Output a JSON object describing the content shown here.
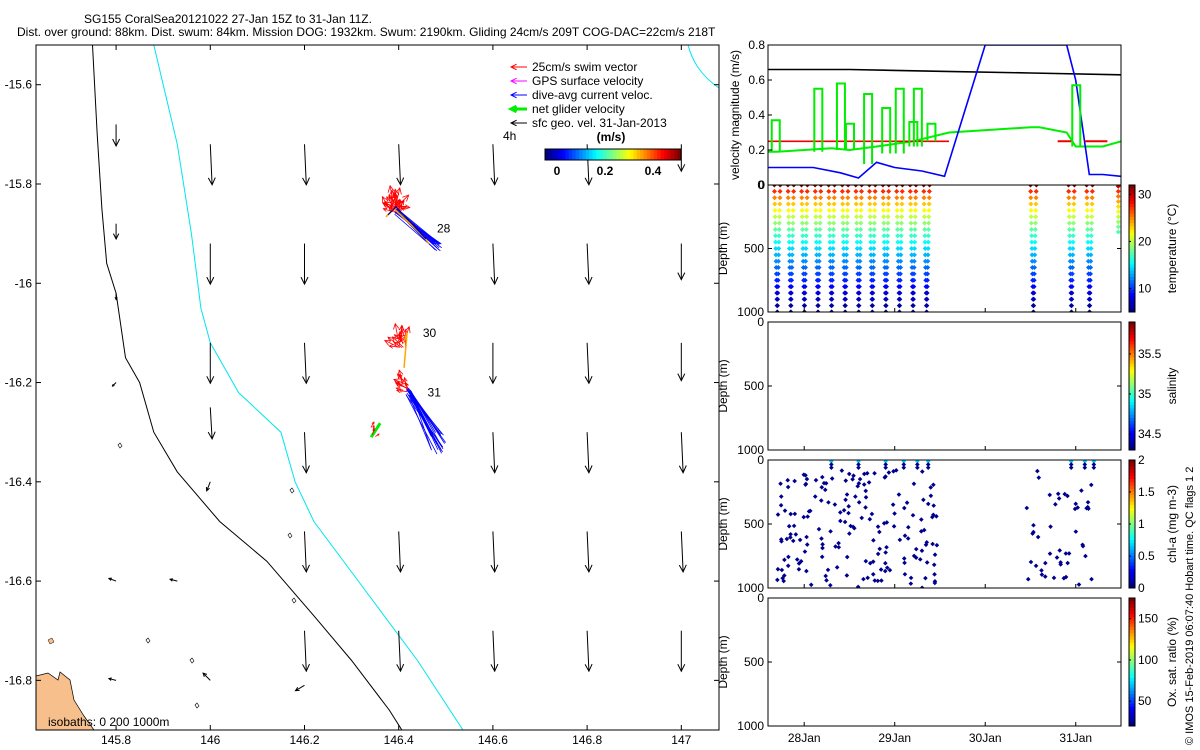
{
  "header": {
    "line1": "SG155 CoralSea20121022 27-Jan 15Z to 31-Jan 11Z.",
    "line2": "Dist. over ground: 88km. Dist. swum: 84km. Mission DOG: 1932km. Swum: 2190km. Gliding 24cm/s 209T COG-DAC=22cm/s 218T"
  },
  "credit": "© IMOS 15-Feb-2019 06:07:40 Hobart time. QC flags 1  2",
  "chart_data": [
    {
      "type": "map",
      "x_ticks": [
        "145.8",
        "146",
        "146.2",
        "146.4",
        "146.6",
        "146.8",
        "147"
      ],
      "y_ticks": [
        "-15.6",
        "-15.8",
        "-16",
        "-16.2",
        "-16.4",
        "-16.6",
        "-16.8"
      ],
      "xlim": [
        145.63,
        147.08
      ],
      "ylim": [
        -16.9,
        -15.52
      ],
      "legend": {
        "items": [
          {
            "label": "25cm/s swim vector",
            "color": "#ff0000"
          },
          {
            "label": "GPS surface velocity",
            "color": "#ff00ff"
          },
          {
            "label": "dive-avg current veloc.",
            "color": "#0000ff"
          },
          {
            "label": "net glider velocity",
            "color": "#00ee00"
          },
          {
            "label": "sfc geo. vel. 31-Jan-2013",
            "color": "#000000"
          }
        ],
        "scale_label": "4h",
        "colorbar_unit": "(m/s)",
        "colorbar_ticks": [
          "0",
          "0.2",
          "0.4"
        ]
      },
      "day_labels": [
        {
          "text": "28",
          "lon": 146.46,
          "lat": -15.89
        },
        {
          "text": "30",
          "lon": 146.43,
          "lat": -16.1
        },
        {
          "text": "31",
          "lon": 146.44,
          "lat": -16.22
        }
      ],
      "isobath_label": "isobaths: 0   200  1000m",
      "geostrophic_vectors": [
        {
          "lon": 145.8,
          "lat": -15.68,
          "u": 0.0,
          "v": -0.24
        },
        {
          "lon": 146.0,
          "lat": -15.72,
          "u": 0.02,
          "v": -0.45
        },
        {
          "lon": 146.2,
          "lat": -15.72,
          "u": 0.02,
          "v": -0.45
        },
        {
          "lon": 146.4,
          "lat": -15.72,
          "u": 0.02,
          "v": -0.45
        },
        {
          "lon": 146.6,
          "lat": -15.72,
          "u": 0.02,
          "v": -0.45
        },
        {
          "lon": 146.8,
          "lat": -15.72,
          "u": 0.02,
          "v": -0.45
        },
        {
          "lon": 147.0,
          "lat": -15.72,
          "u": 0.0,
          "v": -0.3
        },
        {
          "lon": 145.8,
          "lat": -15.88,
          "u": 0.0,
          "v": -0.17
        },
        {
          "lon": 146.0,
          "lat": -15.92,
          "u": 0.0,
          "v": -0.45
        },
        {
          "lon": 146.2,
          "lat": -15.92,
          "u": 0.0,
          "v": -0.45
        },
        {
          "lon": 146.6,
          "lat": -15.92,
          "u": 0.02,
          "v": -0.45
        },
        {
          "lon": 146.8,
          "lat": -15.92,
          "u": 0.02,
          "v": -0.45
        },
        {
          "lon": 147.0,
          "lat": -15.92,
          "u": 0.0,
          "v": -0.4
        },
        {
          "lon": 145.8,
          "lat": -16.02,
          "u": 0.0,
          "v": -0.07
        },
        {
          "lon": 146.0,
          "lat": -16.12,
          "u": 0.0,
          "v": -0.45
        },
        {
          "lon": 146.2,
          "lat": -16.12,
          "u": 0.02,
          "v": -0.45
        },
        {
          "lon": 146.6,
          "lat": -16.12,
          "u": 0.0,
          "v": -0.45
        },
        {
          "lon": 146.8,
          "lat": -16.12,
          "u": 0.02,
          "v": -0.45
        },
        {
          "lon": 147.0,
          "lat": -16.12,
          "u": 0.0,
          "v": -0.42
        },
        {
          "lon": 145.8,
          "lat": -16.2,
          "u": -0.04,
          "v": -0.04
        },
        {
          "lon": 146.0,
          "lat": -16.25,
          "u": 0.02,
          "v": -0.35
        },
        {
          "lon": 146.2,
          "lat": -16.3,
          "u": 0.02,
          "v": -0.45
        },
        {
          "lon": 146.6,
          "lat": -16.3,
          "u": 0.02,
          "v": -0.45
        },
        {
          "lon": 146.8,
          "lat": -16.3,
          "u": 0.02,
          "v": -0.45
        },
        {
          "lon": 147.0,
          "lat": -16.3,
          "u": 0.02,
          "v": -0.45
        },
        {
          "lon": 146.0,
          "lat": -16.4,
          "u": -0.04,
          "v": -0.1
        },
        {
          "lon": 146.2,
          "lat": -16.5,
          "u": 0.02,
          "v": -0.45
        },
        {
          "lon": 146.4,
          "lat": -16.5,
          "u": 0.02,
          "v": -0.45
        },
        {
          "lon": 146.6,
          "lat": -16.5,
          "u": 0.02,
          "v": -0.45
        },
        {
          "lon": 146.8,
          "lat": -16.5,
          "u": 0.02,
          "v": -0.45
        },
        {
          "lon": 147.0,
          "lat": -16.5,
          "u": 0.02,
          "v": -0.45
        },
        {
          "lon": 145.8,
          "lat": -16.6,
          "u": -0.08,
          "v": 0.03
        },
        {
          "lon": 145.93,
          "lat": -16.6,
          "u": -0.08,
          "v": 0.02
        },
        {
          "lon": 146.2,
          "lat": -16.7,
          "u": 0.02,
          "v": -0.45
        },
        {
          "lon": 146.4,
          "lat": -16.7,
          "u": 0.02,
          "v": -0.45
        },
        {
          "lon": 146.6,
          "lat": -16.7,
          "u": 0.02,
          "v": -0.45
        },
        {
          "lon": 146.8,
          "lat": -16.7,
          "u": 0.02,
          "v": -0.45
        },
        {
          "lon": 147.0,
          "lat": -16.7,
          "u": 0.0,
          "v": -0.45
        },
        {
          "lon": 145.8,
          "lat": -16.8,
          "u": -0.08,
          "v": 0.02
        },
        {
          "lon": 146.0,
          "lat": -16.8,
          "u": -0.08,
          "v": 0.08
        },
        {
          "lon": 146.2,
          "lat": -16.81,
          "u": -0.1,
          "v": -0.06
        },
        {
          "lon": 146.4,
          "lat": -16.9,
          "u": 0.02,
          "v": -0.45
        },
        {
          "lon": 146.6,
          "lat": -16.92,
          "u": 0.02,
          "v": -0.45
        },
        {
          "lon": 146.8,
          "lat": -16.92,
          "u": 0.02,
          "v": -0.45
        },
        {
          "lon": 147.0,
          "lat": -16.92,
          "u": 0.0,
          "v": -0.45
        }
      ],
      "coast_isobath_0": [
        [
          145.88,
          -15.52
        ],
        [
          145.93,
          -15.72
        ],
        [
          145.96,
          -15.9
        ],
        [
          145.98,
          -16.05
        ],
        [
          146.0,
          -16.12
        ],
        [
          146.06,
          -16.22
        ],
        [
          146.15,
          -16.3
        ],
        [
          146.18,
          -16.4
        ],
        [
          146.22,
          -16.48
        ],
        [
          146.33,
          -16.62
        ],
        [
          146.44,
          -16.76
        ],
        [
          146.55,
          -16.92
        ]
      ],
      "isobath_1000": [
        [
          145.75,
          -15.52
        ],
        [
          145.76,
          -15.7
        ],
        [
          145.77,
          -15.85
        ],
        [
          145.78,
          -15.96
        ],
        [
          145.8,
          -16.02
        ],
        [
          145.82,
          -16.15
        ],
        [
          145.85,
          -16.2
        ],
        [
          145.88,
          -16.3
        ],
        [
          145.93,
          -16.38
        ],
        [
          146.02,
          -16.48
        ],
        [
          146.12,
          -16.56
        ],
        [
          146.22,
          -16.67
        ],
        [
          146.3,
          -16.76
        ],
        [
          146.38,
          -16.86
        ],
        [
          146.42,
          -16.92
        ]
      ],
      "tracks": {
        "swim_vectors": [
          {
            "lon": 146.38,
            "lat": -15.85,
            "u": -0.05,
            "v": 0.04
          },
          {
            "lon": 146.4,
            "lat": -15.86,
            "u": 0.02,
            "v": 0.07
          },
          {
            "lon": 146.42,
            "lat": -15.87,
            "u": 0.05,
            "v": 0.03
          },
          {
            "lon": 146.41,
            "lat": -16.13,
            "u": -0.03,
            "v": 0.06
          },
          {
            "lon": 146.41,
            "lat": -16.2,
            "u": -0.06,
            "v": 0.03
          },
          {
            "lon": 146.34,
            "lat": -16.3,
            "u": 0.03,
            "v": 0.04
          }
        ],
        "current_vectors": [
          {
            "lon": 146.39,
            "lat": -15.84,
            "u": 0.08,
            "v": -0.08
          },
          {
            "lon": 146.42,
            "lat": -16.24,
            "u": 0.03,
            "v": -0.1
          },
          {
            "lon": 146.43,
            "lat": -16.26,
            "u": 0.02,
            "v": -0.09
          }
        ]
      }
    },
    {
      "type": "line",
      "ylabel": "velocity magnitude (m/s)",
      "ylim": [
        0,
        0.8
      ],
      "y_ticks": [
        "0",
        "0.2",
        "0.4",
        "0.6",
        "0.8"
      ],
      "x_ticks": [
        "28Jan",
        "29Jan",
        "30Jan",
        "31Jan"
      ],
      "xlim": [
        27.6,
        31.5
      ],
      "series": [
        {
          "color": "#000000",
          "x": [
            27.6,
            28.5,
            29.5,
            30.5,
            31.5
          ],
          "y": [
            0.66,
            0.66,
            0.65,
            0.64,
            0.63
          ]
        },
        {
          "color": "#00ee00",
          "x": [
            27.6,
            27.7,
            28.0,
            28.3,
            28.5,
            28.8,
            29.2,
            29.6,
            30.5,
            30.6,
            30.9,
            31.0,
            31.3,
            31.5
          ],
          "y": [
            0.19,
            0.19,
            0.2,
            0.21,
            0.2,
            0.22,
            0.25,
            0.3,
            0.33,
            0.33,
            0.3,
            0.22,
            0.22,
            0.25
          ]
        },
        {
          "color": "#0000ff",
          "x": [
            27.6,
            27.8,
            28.1,
            28.4,
            28.6,
            28.8,
            29.0,
            29.3,
            29.55,
            30.0,
            30.9,
            31.0,
            31.15,
            31.3,
            31.5
          ],
          "y": [
            0.1,
            0.1,
            0.1,
            0.07,
            0.04,
            0.13,
            0.1,
            0.08,
            0.05,
            0.8,
            0.8,
            0.6,
            0.06,
            0.06,
            0.05
          ]
        },
        {
          "color": "#ee0000",
          "x": [
            27.6,
            29.6
          ],
          "y": [
            0.25,
            0.25
          ]
        }
      ]
    },
    {
      "type": "scatter",
      "ylabel": "Depth (m)",
      "ylim": [
        1000,
        0
      ],
      "y_ticks": [
        "0",
        "500",
        "1000"
      ],
      "colorbar_label": "temperature (°C)",
      "colorbar_ticks": [
        "10",
        "20",
        "30"
      ],
      "clim": [
        5,
        32
      ]
    },
    {
      "type": "scatter",
      "ylabel": "Depth (m)",
      "ylim": [
        1000,
        0
      ],
      "y_ticks": [
        "0",
        "500",
        "1000"
      ],
      "colorbar_label": "salinity",
      "colorbar_ticks": [
        "34.5",
        "35",
        "35.5"
      ],
      "clim": [
        34.3,
        35.9
      ]
    },
    {
      "type": "scatter",
      "ylabel": "Depth (m)",
      "ylim": [
        1000,
        0
      ],
      "y_ticks": [
        "0",
        "500",
        "1000"
      ],
      "colorbar_label": "chl-a (mg m-3)",
      "colorbar_ticks": [
        "0",
        "0.5",
        "1",
        "1.5",
        "2"
      ],
      "clim": [
        0,
        2
      ]
    },
    {
      "type": "scatter",
      "ylabel": "Depth (m)",
      "ylim": [
        1000,
        0
      ],
      "y_ticks": [
        "0",
        "500",
        "1000"
      ],
      "x_ticks": [
        "28Jan",
        "29Jan",
        "30Jan",
        "31Jan"
      ],
      "colorbar_label": "Ox. sat. ratio (%)",
      "colorbar_ticks": [
        "50",
        "100",
        "150"
      ],
      "clim": [
        20,
        175
      ]
    }
  ]
}
